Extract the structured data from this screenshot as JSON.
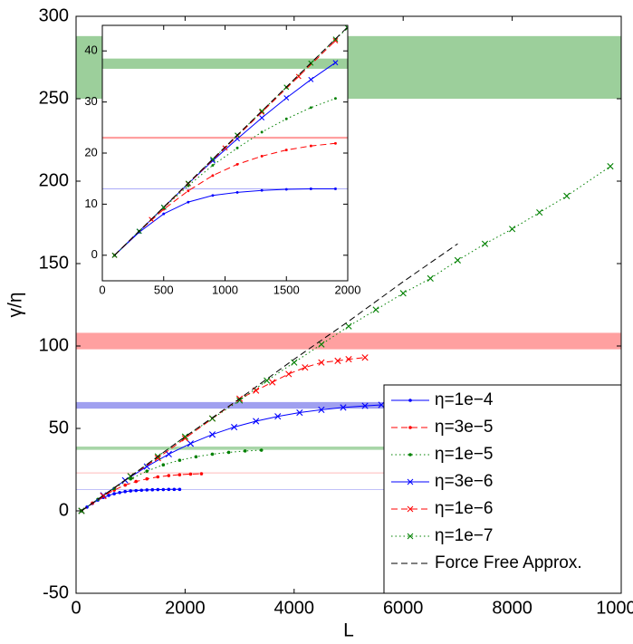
{
  "chart_data": [
    {
      "type": "line",
      "xlabel": "L",
      "ylabel": "γ/η",
      "xlim": [
        0,
        10000
      ],
      "ylim": [
        -50,
        300
      ],
      "xticks": [
        0,
        2000,
        4000,
        6000,
        8000,
        10000
      ],
      "yticks": [
        -50,
        0,
        50,
        100,
        150,
        200,
        250,
        300
      ],
      "legend": "lower right",
      "bands": [
        {
          "range": [
            250,
            288
          ],
          "color": "#9ccf9b"
        },
        {
          "range": [
            98,
            108
          ],
          "color": "#ffa0a0"
        },
        {
          "range": [
            62,
            66
          ],
          "color": "#a0a0f0"
        },
        {
          "range": [
            37,
            39
          ],
          "color": "#a8d6a8"
        },
        {
          "range": [
            22.7,
            23.3
          ],
          "color": "#ffc0c0"
        },
        {
          "range": [
            12.8,
            13.2
          ],
          "color": "#c0c0f8"
        }
      ],
      "series": [
        {
          "name": "η=1e−4",
          "color": "#0000ff",
          "marker": "dot",
          "line_style": "solid",
          "x": [
            100,
            200,
            300,
            400,
            500,
            600,
            700,
            800,
            900,
            1000,
            1100,
            1200,
            1300,
            1400,
            1500,
            1600,
            1700,
            1800,
            1900
          ],
          "values": [
            0,
            2.3,
            4.5,
            6.5,
            8.1,
            9.4,
            10.4,
            11.1,
            11.7,
            12.1,
            12.3,
            12.5,
            12.7,
            12.8,
            12.9,
            12.9,
            13,
            13,
            13
          ]
        },
        {
          "name": "η=3e−5",
          "color": "#ff0000",
          "marker": "dot",
          "line_style": "dashed",
          "x": [
            100,
            300,
            500,
            700,
            900,
            1100,
            1300,
            1500,
            1700,
            1900,
            2100,
            2300
          ],
          "values": [
            0,
            4.7,
            9.0,
            12.6,
            15.6,
            17.8,
            19.4,
            20.6,
            21.4,
            21.9,
            22.3,
            22.5
          ]
        },
        {
          "name": "η=1e−5",
          "color": "#008000",
          "marker": "dot",
          "line_style": "dotted",
          "x": [
            100,
            400,
            700,
            1000,
            1300,
            1600,
            1900,
            2200,
            2500,
            2800,
            3100,
            3400
          ],
          "values": [
            0,
            7.0,
            13.6,
            19.4,
            24.1,
            27.9,
            30.7,
            32.8,
            34.4,
            35.5,
            36.3,
            36.8
          ]
        },
        {
          "name": "η=3e−6",
          "color": "#0000ff",
          "marker": "x",
          "line_style": "solid",
          "x": [
            100,
            500,
            900,
            1300,
            1700,
            2100,
            2500,
            2900,
            3300,
            3700,
            4100,
            4500,
            4900,
            5300,
            5600
          ],
          "values": [
            0,
            9.4,
            18.5,
            26.9,
            34.4,
            40.8,
            46.3,
            50.8,
            54.4,
            57.3,
            59.6,
            61.3,
            62.7,
            63.7,
            64.3
          ]
        },
        {
          "name": "η=1e−6",
          "color": "#ff0000",
          "marker": "x",
          "line_style": "dashed",
          "x": [
            100,
            500,
            1000,
            1500,
            2000,
            2500,
            3000,
            3300,
            3600,
            3900,
            4200,
            4500,
            4800,
            5000,
            5300
          ],
          "values": [
            0,
            9,
            21,
            32,
            44,
            56,
            68,
            73,
            78,
            83,
            87,
            90,
            91,
            92,
            93
          ]
        },
        {
          "name": "η=1e−7",
          "color": "#008000",
          "marker": "x",
          "line_style": "dotted",
          "x": [
            100,
            1000,
            1500,
            2000,
            2500,
            3000,
            3500,
            4000,
            4500,
            5000,
            5500,
            6000,
            6500,
            7000,
            7500,
            8000,
            8500,
            9000,
            9800
          ],
          "values": [
            0,
            21,
            33,
            45,
            56,
            67,
            79,
            90,
            101,
            112,
            122,
            132,
            141,
            152,
            162,
            171,
            181,
            191,
            209
          ]
        },
        {
          "name": "Force Free Approx.",
          "color": "#000000",
          "marker": "none",
          "line_style": "dashed",
          "x": [
            100,
            1000,
            2000,
            3000,
            4000,
            5000,
            6000,
            7000
          ],
          "values": [
            0,
            21,
            45,
            68,
            92,
            115,
            139,
            162
          ]
        }
      ]
    },
    {
      "type": "line",
      "xlim": [
        0,
        2000
      ],
      "ylim": [
        -5,
        45
      ],
      "xticks": [
        0,
        500,
        1000,
        1500,
        2000
      ],
      "yticks": [
        0,
        10,
        20,
        30,
        40
      ],
      "bands": [
        {
          "range": [
            36.5,
            38.5
          ],
          "color": "#9ccf9b"
        },
        {
          "range": [
            22.8,
            23.2
          ],
          "color": "#ffa0a0"
        },
        {
          "range": [
            12.9,
            13.1
          ],
          "color": "#b0b0f8"
        }
      ],
      "series": [
        {
          "color": "#0000ff",
          "marker": "dot",
          "line_style": "solid",
          "x": [
            100,
            300,
            500,
            700,
            900,
            1100,
            1300,
            1500,
            1700,
            1900
          ],
          "values": [
            0,
            4.5,
            8.1,
            10.4,
            11.7,
            12.3,
            12.7,
            12.9,
            13,
            13
          ]
        },
        {
          "color": "#ff0000",
          "marker": "dot",
          "line_style": "dashed",
          "x": [
            100,
            300,
            500,
            700,
            900,
            1100,
            1300,
            1500,
            1700,
            1900
          ],
          "values": [
            0,
            4.7,
            9.0,
            12.6,
            15.6,
            17.8,
            19.4,
            20.6,
            21.4,
            21.9
          ]
        },
        {
          "color": "#008000",
          "marker": "dot",
          "line_style": "dotted",
          "x": [
            100,
            300,
            500,
            700,
            900,
            1100,
            1300,
            1500,
            1700,
            1900
          ],
          "values": [
            0,
            4.7,
            9.3,
            13.6,
            17.6,
            21.0,
            24.1,
            26.7,
            28.9,
            30.7
          ]
        },
        {
          "color": "#0000ff",
          "marker": "x",
          "line_style": "solid",
          "x": [
            100,
            300,
            500,
            700,
            900,
            1100,
            1300,
            1500,
            1700,
            1900
          ],
          "values": [
            0,
            4.7,
            9.4,
            14.0,
            18.5,
            22.8,
            26.9,
            30.8,
            34.4,
            37.7
          ]
        },
        {
          "color": "#ff0000",
          "marker": "x",
          "line_style": "dashed",
          "x": [
            100,
            400,
            700,
            1000,
            1300,
            1600,
            1900
          ],
          "values": [
            0,
            7,
            14,
            21,
            28,
            35,
            42
          ]
        },
        {
          "color": "#008000",
          "marker": "x",
          "line_style": "dotted",
          "x": [
            100,
            300,
            500,
            700,
            900,
            1100,
            1300,
            1500,
            1700,
            1900,
            2000
          ],
          "values": [
            0,
            4.7,
            9.4,
            14.1,
            18.8,
            23.5,
            28.2,
            32.9,
            37.6,
            42.3,
            44.5
          ]
        },
        {
          "color": "#000000",
          "marker": "none",
          "line_style": "dashed",
          "x": [
            100,
            2000
          ],
          "values": [
            0,
            44.7
          ]
        }
      ]
    }
  ]
}
